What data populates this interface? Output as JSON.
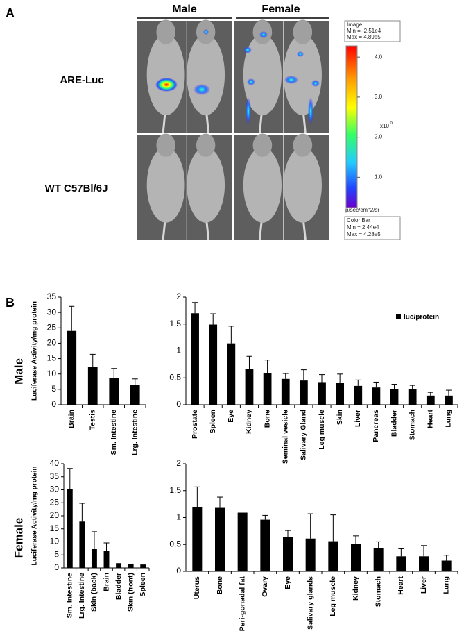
{
  "figure": {
    "panel_a": {
      "label": "A",
      "columns": [
        "Male",
        "Female"
      ],
      "rows": [
        "ARE-Luc",
        "WT C57Bl/6J"
      ],
      "colorbar": {
        "image_box": [
          "Image",
          "Min = -2.51e4",
          "Max = 4.89e5"
        ],
        "clim": [
          0.244,
          4.28
        ],
        "ticks": [
          {
            "value": 1,
            "label": "1.0"
          },
          {
            "value": 2,
            "label": "2.0"
          },
          {
            "value": 3,
            "label": "3.0"
          },
          {
            "value": 4,
            "label": "4.0"
          }
        ],
        "multiplier": "x10",
        "exponent": "5",
        "unit": "p/sec/cm^2/sr",
        "colorbar_box": [
          "Color Bar",
          "Min = 2.44e4",
          "Max = 4.28e5"
        ]
      }
    },
    "panel_b": {
      "label": "B",
      "rows": [
        "Male",
        "Female"
      ]
    }
  },
  "chart_data": [
    {
      "type": "bar",
      "ylabel": "Luciferase Activity/mg protein",
      "categories": [
        "Brain",
        "Testis",
        "Sm. Intestine",
        "Lrg. Intestine"
      ],
      "series": [
        {
          "color": "#000000",
          "values": [
            24,
            12.4,
            8.8,
            6.4
          ],
          "errors": [
            8,
            4,
            3,
            2
          ]
        }
      ],
      "ylim": [
        0,
        35
      ],
      "yticks": [
        0,
        5,
        10,
        15,
        20,
        25,
        30,
        35
      ]
    },
    {
      "type": "bar",
      "categories": [
        "Prostate",
        "Spleen",
        "Eye",
        "Kidney",
        "Bone",
        "Seminal vesicle",
        "Salivary Gland",
        "Leg muscle",
        "Skin",
        "Liver",
        "Pancreas",
        "Bladder",
        "Stomach",
        "Heart",
        "Lung"
      ],
      "series": [
        {
          "name": "luc/protein",
          "color": "#000000",
          "values": [
            1.7,
            1.49,
            1.14,
            0.67,
            0.59,
            0.48,
            0.45,
            0.42,
            0.4,
            0.35,
            0.32,
            0.29,
            0.29,
            0.17,
            0.17
          ],
          "errors": [
            0.2,
            0.2,
            0.32,
            0.23,
            0.24,
            0.1,
            0.2,
            0.14,
            0.17,
            0.11,
            0.1,
            0.09,
            0.07,
            0.06,
            0.1
          ]
        }
      ],
      "ylim": [
        0,
        2
      ],
      "yticks": [
        0,
        0.5,
        1,
        1.5,
        2
      ]
    },
    {
      "type": "bar",
      "ylabel": "Luciferase Activity/mg protein",
      "categories": [
        "Sm. Intestine",
        "Lrg. Intestine",
        "Skin (back)",
        "Brain",
        "Bladder",
        "Skin (front)",
        "Spleen"
      ],
      "series": [
        {
          "color": "#000000",
          "values": [
            30.2,
            17.8,
            7.2,
            6.6,
            1.8,
            1.4,
            1.3
          ],
          "errors": [
            8,
            7,
            6.7,
            3,
            null,
            null,
            null
          ]
        }
      ],
      "ylim": [
        0,
        40
      ],
      "yticks": [
        0,
        5,
        10,
        15,
        20,
        25,
        30,
        35,
        40
      ]
    },
    {
      "type": "bar",
      "categories": [
        "Uterus",
        "Bone",
        "Peri-gonadal fat",
        "Ovary",
        "Eye",
        "Salivary glands",
        "Leg muscle",
        "Kidney",
        "Stomach",
        "Heart",
        "Liver",
        "Lung"
      ],
      "series": [
        {
          "color": "#000000",
          "values": [
            1.2,
            1.18,
            1.09,
            0.96,
            0.64,
            0.61,
            0.56,
            0.51,
            0.43,
            0.28,
            0.28,
            0.2
          ],
          "errors": [
            0.37,
            0.2,
            null,
            0.08,
            0.12,
            0.46,
            0.49,
            0.15,
            0.12,
            0.14,
            0.2,
            0.1
          ]
        }
      ],
      "ylim": [
        0,
        2
      ],
      "yticks": [
        0,
        0.5,
        1,
        1.5,
        2
      ]
    }
  ]
}
